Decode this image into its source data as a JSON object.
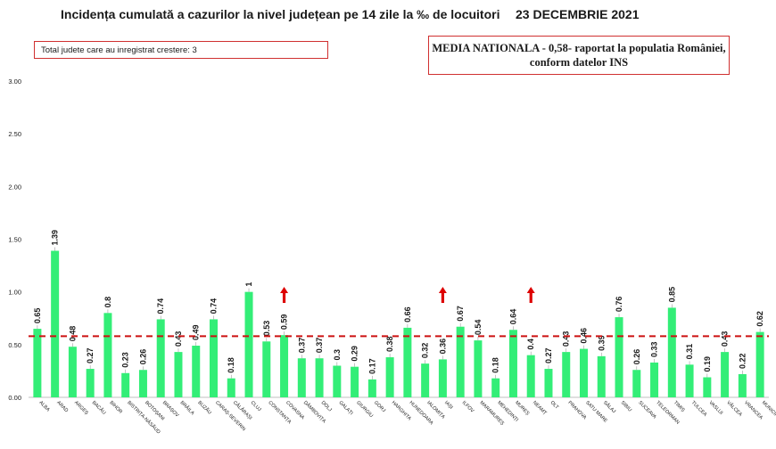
{
  "header": {
    "title": "Incidența cumulată a cazurilor la nivel județean pe 14 zile la ‰ de locuitori",
    "date": "23 DECEMBRIE 2021"
  },
  "info_box": {
    "text": "Total judete care au inregistrat crestere: 3"
  },
  "national_box": {
    "line1": "MEDIA NATIONALA - 0,58-  raportat la populatia României,",
    "line2": "conform datelor INS"
  },
  "colors": {
    "bar": "#33ee77",
    "reference_line": "#cc1111",
    "arrow": "#dd0000",
    "text": "#1a1a1a"
  },
  "chart_data": {
    "type": "bar",
    "categories": [
      "ALBA",
      "ARAD",
      "ARGEȘ",
      "BACĂU",
      "BIHOR",
      "BISTRIȚA-NĂSĂUD",
      "BOTOȘANI",
      "BRAȘOV",
      "BRĂILA",
      "BUZĂU",
      "CARAȘ-SEVERIN",
      "CĂLĂRAȘI",
      "CLUJ",
      "CONSTANȚA",
      "COVASNA",
      "DÂMBOVIȚA",
      "DOLJ",
      "GALAȚI",
      "GIURGIU",
      "GORJ",
      "HARGHITA",
      "HUNEDOARA",
      "IALOMIȚA",
      "IAȘI",
      "ILFOV",
      "MARAMUREȘ",
      "MEHEDINȚI",
      "MUREȘ",
      "NEAMȚ",
      "OLT",
      "PRAHOVA",
      "SATU MARE",
      "SĂLAJ",
      "SIBIU",
      "SUCEAVA",
      "TELEORMAN",
      "TIMIȘ",
      "TULCEA",
      "VASLUI",
      "VÂLCEA",
      "VRANCEA",
      "MUNICIPIUL..."
    ],
    "values": [
      0.65,
      1.39,
      0.48,
      0.27,
      0.8,
      0.23,
      0.26,
      0.74,
      0.43,
      0.49,
      0.74,
      0.18,
      1,
      0.53,
      0.59,
      0.37,
      0.37,
      0.3,
      0.29,
      0.17,
      0.38,
      0.66,
      0.32,
      0.36,
      0.67,
      0.54,
      0.18,
      0.64,
      0.4,
      0.27,
      0.43,
      0.46,
      0.39,
      0.76,
      0.26,
      0.33,
      0.85,
      0.31,
      0.19,
      0.43,
      0.22,
      0.62
    ],
    "value_labels": [
      "0.65",
      "1.39",
      "0.48",
      "0.27",
      "0.8",
      "0.23",
      "0.26",
      "0.74",
      "0.43",
      "0.49",
      "0.74",
      "0.18",
      "1",
      "0.53",
      "0.59",
      "0.37",
      "0.37",
      "0.3",
      "0.29",
      "0.17",
      "0.38",
      "0.66",
      "0.32",
      "0.36",
      "0.67",
      "0.54",
      "0.18",
      "0.64",
      "0.4",
      "0.27",
      "0.43",
      "0.46",
      "0.39",
      "0.76",
      "0.26",
      "0.33",
      "0.85",
      "0.31",
      "0.19",
      "0.43",
      "0.22",
      "0.62"
    ],
    "increase_markers": [
      "COVASNA",
      "IAȘI",
      "NEAMȚ"
    ],
    "reference_line": {
      "value": 0.58,
      "style": "dashed"
    },
    "y_ticks": [
      "0.00",
      "0.50",
      "1.00",
      "1.50",
      "2.00",
      "2.50",
      "3.00"
    ],
    "ylim": [
      0,
      3
    ],
    "grid": false,
    "legend": "none"
  }
}
